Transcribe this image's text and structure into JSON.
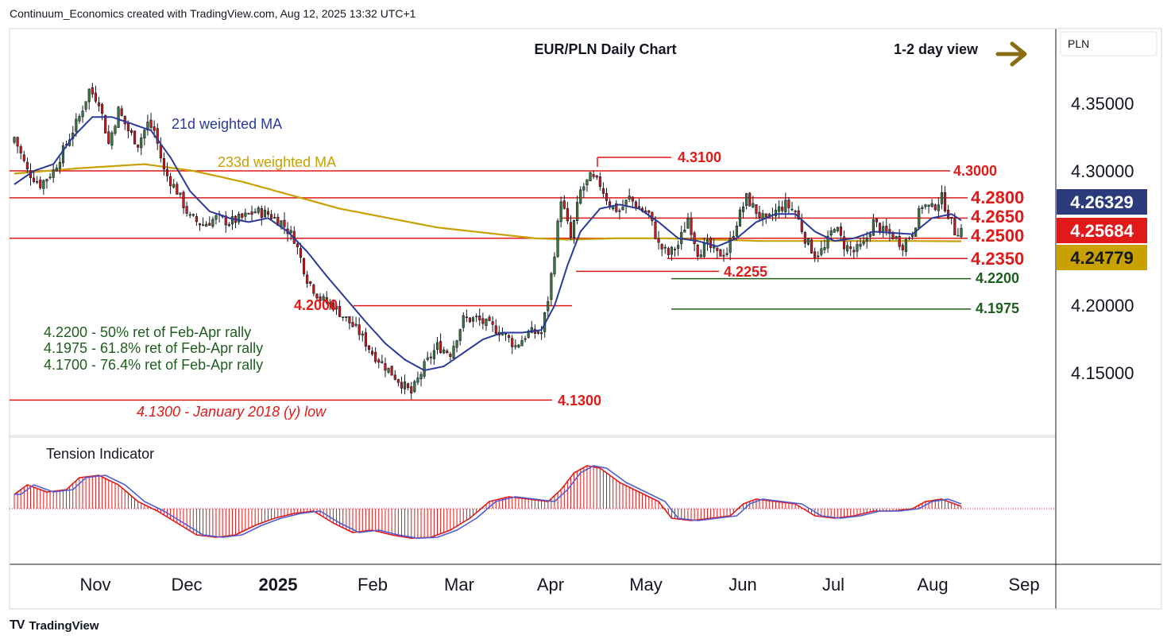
{
  "header": {
    "credit": "Continuum_Economics created with TradingView.com, Aug 12, 2025 13:32 UTC+1"
  },
  "footer": {
    "logo_mark": "TV",
    "brand": "TradingView"
  },
  "chart_data": {
    "type": "candlestick",
    "title": "EUR/PLN Daily Chart",
    "view_note": "1-2 day view",
    "currency_label": "PLN",
    "y_ticks": [
      "4.35000",
      "4.30000",
      "4.20000",
      "4.15000"
    ],
    "x_ticks": [
      "Nov",
      "Dec",
      "2025",
      "Feb",
      "Mar",
      "Apr",
      "May",
      "Jun",
      "Jul",
      "Aug",
      "Sep"
    ],
    "ylim": [
      4.1,
      4.38
    ],
    "price_tags": [
      {
        "label": "4.26329",
        "value": 4.26329,
        "color": "#2a3a7a",
        "text_color": "#ffffff"
      },
      {
        "label": "4.25684",
        "value": 4.25684,
        "color": "#e01919",
        "text_color": "#ffffff"
      },
      {
        "label": "4.24779",
        "value": 4.24779,
        "color": "#c8a000",
        "text_color": "#131722"
      }
    ],
    "ma_labels": {
      "ma21": "21d weighted MA",
      "ma233": "233d weighted MA"
    },
    "levels": [
      {
        "label": "4.3100",
        "value": 4.31
      },
      {
        "label": "4.3000",
        "value": 4.3
      },
      {
        "label": "4.2800",
        "value": 4.28
      },
      {
        "label": "4.2650",
        "value": 4.265
      },
      {
        "label": "4.2500",
        "value": 4.25
      },
      {
        "label": "4.2350",
        "value": 4.235
      },
      {
        "label": "4.2255",
        "value": 4.2255
      },
      {
        "label": "4.2200",
        "value": 4.22
      },
      {
        "label": "4.2000",
        "value": 4.2
      },
      {
        "label": "4.1975",
        "value": 4.1975
      },
      {
        "label": "4.1300",
        "value": 4.13
      }
    ],
    "notes": [
      "4.2200 - 50% ret of Feb-Apr rally",
      "4.1975 - 61.8% ret of Feb-Apr rally",
      "4.1700 - 76.4% ret of Feb-Apr rally"
    ],
    "low_note": "4.1300 - January 2018 (y) low",
    "indicator_title": "Tension Indicator",
    "colors": {
      "level": "#e01919",
      "green_level": "#1e5e1e",
      "ma21": "#2a3a9a",
      "ma233": "#c8a000",
      "up": "#3a7a3a",
      "down": "#d01818",
      "arrow": "#8a6d14",
      "notes": "#1e5e1e"
    },
    "close_anchors": [
      [
        0,
        4.325
      ],
      [
        4,
        4.3
      ],
      [
        8,
        4.29
      ],
      [
        12,
        4.3
      ],
      [
        16,
        4.32
      ],
      [
        20,
        4.34
      ],
      [
        23,
        4.36
      ],
      [
        26,
        4.352
      ],
      [
        29,
        4.32
      ],
      [
        32,
        4.345
      ],
      [
        35,
        4.33
      ],
      [
        38,
        4.32
      ],
      [
        41,
        4.335
      ],
      [
        43,
        4.33
      ],
      [
        46,
        4.3
      ],
      [
        50,
        4.285
      ],
      [
        54,
        4.265
      ],
      [
        58,
        4.26
      ],
      [
        62,
        4.265
      ],
      [
        66,
        4.262
      ],
      [
        70,
        4.265
      ],
      [
        74,
        4.27
      ],
      [
        78,
        4.268
      ],
      [
        82,
        4.262
      ],
      [
        86,
        4.25
      ],
      [
        90,
        4.22
      ],
      [
        94,
        4.205
      ],
      [
        98,
        4.2
      ],
      [
        102,
        4.19
      ],
      [
        106,
        4.18
      ],
      [
        110,
        4.165
      ],
      [
        114,
        4.155
      ],
      [
        118,
        4.145
      ],
      [
        122,
        4.135
      ],
      [
        126,
        4.155
      ],
      [
        130,
        4.17
      ],
      [
        134,
        4.165
      ],
      [
        138,
        4.19
      ],
      [
        142,
        4.19
      ],
      [
        146,
        4.185
      ],
      [
        150,
        4.18
      ],
      [
        154,
        4.17
      ],
      [
        158,
        4.18
      ],
      [
        162,
        4.18
      ],
      [
        164,
        4.205
      ],
      [
        166,
        4.24
      ],
      [
        168,
        4.28
      ],
      [
        171,
        4.25
      ],
      [
        174,
        4.285
      ],
      [
        177,
        4.295
      ],
      [
        180,
        4.29
      ],
      [
        183,
        4.275
      ],
      [
        186,
        4.27
      ],
      [
        189,
        4.28
      ],
      [
        192,
        4.272
      ],
      [
        195,
        4.268
      ],
      [
        198,
        4.245
      ],
      [
        201,
        4.238
      ],
      [
        204,
        4.245
      ],
      [
        207,
        4.265
      ],
      [
        210,
        4.24
      ],
      [
        213,
        4.245
      ],
      [
        216,
        4.238
      ],
      [
        219,
        4.24
      ],
      [
        222,
        4.262
      ],
      [
        225,
        4.28
      ],
      [
        228,
        4.27
      ],
      [
        231,
        4.262
      ],
      [
        234,
        4.27
      ],
      [
        237,
        4.275
      ],
      [
        240,
        4.27
      ],
      [
        243,
        4.25
      ],
      [
        246,
        4.238
      ],
      [
        249,
        4.242
      ],
      [
        252,
        4.26
      ],
      [
        255,
        4.245
      ],
      [
        258,
        4.24
      ],
      [
        261,
        4.245
      ],
      [
        264,
        4.262
      ],
      [
        267,
        4.255
      ],
      [
        270,
        4.252
      ],
      [
        273,
        4.245
      ],
      [
        276,
        4.255
      ],
      [
        279,
        4.275
      ],
      [
        282,
        4.272
      ],
      [
        285,
        4.28
      ],
      [
        287,
        4.268
      ],
      [
        289,
        4.255
      ],
      [
        291,
        4.25684
      ]
    ],
    "ma21_anchors": [
      [
        0,
        4.29
      ],
      [
        6,
        4.3
      ],
      [
        12,
        4.305
      ],
      [
        18,
        4.325
      ],
      [
        24,
        4.34
      ],
      [
        30,
        4.34
      ],
      [
        36,
        4.335
      ],
      [
        42,
        4.33
      ],
      [
        48,
        4.31
      ],
      [
        54,
        4.285
      ],
      [
        60,
        4.27
      ],
      [
        66,
        4.265
      ],
      [
        72,
        4.262
      ],
      [
        78,
        4.265
      ],
      [
        84,
        4.255
      ],
      [
        90,
        4.24
      ],
      [
        96,
        4.222
      ],
      [
        102,
        4.205
      ],
      [
        108,
        4.188
      ],
      [
        114,
        4.172
      ],
      [
        120,
        4.16
      ],
      [
        126,
        4.152
      ],
      [
        132,
        4.155
      ],
      [
        138,
        4.165
      ],
      [
        144,
        4.175
      ],
      [
        150,
        4.18
      ],
      [
        156,
        4.18
      ],
      [
        162,
        4.182
      ],
      [
        166,
        4.2
      ],
      [
        170,
        4.23
      ],
      [
        174,
        4.255
      ],
      [
        180,
        4.272
      ],
      [
        186,
        4.275
      ],
      [
        192,
        4.272
      ],
      [
        198,
        4.262
      ],
      [
        204,
        4.25
      ],
      [
        210,
        4.248
      ],
      [
        216,
        4.244
      ],
      [
        222,
        4.25
      ],
      [
        228,
        4.262
      ],
      [
        234,
        4.268
      ],
      [
        240,
        4.268
      ],
      [
        246,
        4.255
      ],
      [
        252,
        4.248
      ],
      [
        258,
        4.25
      ],
      [
        264,
        4.255
      ],
      [
        270,
        4.254
      ],
      [
        276,
        4.253
      ],
      [
        282,
        4.265
      ],
      [
        288,
        4.268
      ],
      [
        291,
        4.26329
      ]
    ],
    "ma233_anchors": [
      [
        0,
        4.298
      ],
      [
        20,
        4.302
      ],
      [
        40,
        4.305
      ],
      [
        55,
        4.3
      ],
      [
        70,
        4.292
      ],
      [
        85,
        4.282
      ],
      [
        100,
        4.272
      ],
      [
        115,
        4.265
      ],
      [
        130,
        4.258
      ],
      [
        145,
        4.254
      ],
      [
        160,
        4.25
      ],
      [
        170,
        4.249
      ],
      [
        185,
        4.25
      ],
      [
        200,
        4.25
      ],
      [
        215,
        4.249
      ],
      [
        230,
        4.248
      ],
      [
        245,
        4.248
      ],
      [
        260,
        4.248
      ],
      [
        275,
        4.248
      ],
      [
        291,
        4.24779
      ]
    ],
    "tension_anchors": [
      [
        0,
        0.3
      ],
      [
        4,
        0.5
      ],
      [
        10,
        0.35
      ],
      [
        16,
        0.4
      ],
      [
        20,
        0.65
      ],
      [
        26,
        0.7
      ],
      [
        32,
        0.5
      ],
      [
        38,
        0.15
      ],
      [
        44,
        -0.05
      ],
      [
        50,
        -0.3
      ],
      [
        56,
        -0.55
      ],
      [
        62,
        -0.6
      ],
      [
        68,
        -0.55
      ],
      [
        74,
        -0.35
      ],
      [
        80,
        -0.2
      ],
      [
        86,
        -0.1
      ],
      [
        92,
        -0.05
      ],
      [
        98,
        -0.3
      ],
      [
        104,
        -0.5
      ],
      [
        110,
        -0.45
      ],
      [
        116,
        -0.55
      ],
      [
        122,
        -0.62
      ],
      [
        128,
        -0.6
      ],
      [
        134,
        -0.45
      ],
      [
        140,
        -0.2
      ],
      [
        146,
        0.15
      ],
      [
        152,
        0.25
      ],
      [
        158,
        0.2
      ],
      [
        164,
        0.15
      ],
      [
        168,
        0.4
      ],
      [
        172,
        0.75
      ],
      [
        176,
        0.9
      ],
      [
        180,
        0.85
      ],
      [
        186,
        0.55
      ],
      [
        192,
        0.35
      ],
      [
        198,
        0.15
      ],
      [
        202,
        -0.2
      ],
      [
        208,
        -0.25
      ],
      [
        214,
        -0.2
      ],
      [
        220,
        -0.15
      ],
      [
        224,
        0.1
      ],
      [
        228,
        0.2
      ],
      [
        234,
        0.15
      ],
      [
        240,
        0.1
      ],
      [
        246,
        -0.15
      ],
      [
        252,
        -0.2
      ],
      [
        258,
        -0.15
      ],
      [
        264,
        -0.05
      ],
      [
        270,
        -0.05
      ],
      [
        276,
        0.0
      ],
      [
        280,
        0.15
      ],
      [
        285,
        0.2
      ],
      [
        289,
        0.1
      ],
      [
        291,
        0.05
      ]
    ]
  }
}
